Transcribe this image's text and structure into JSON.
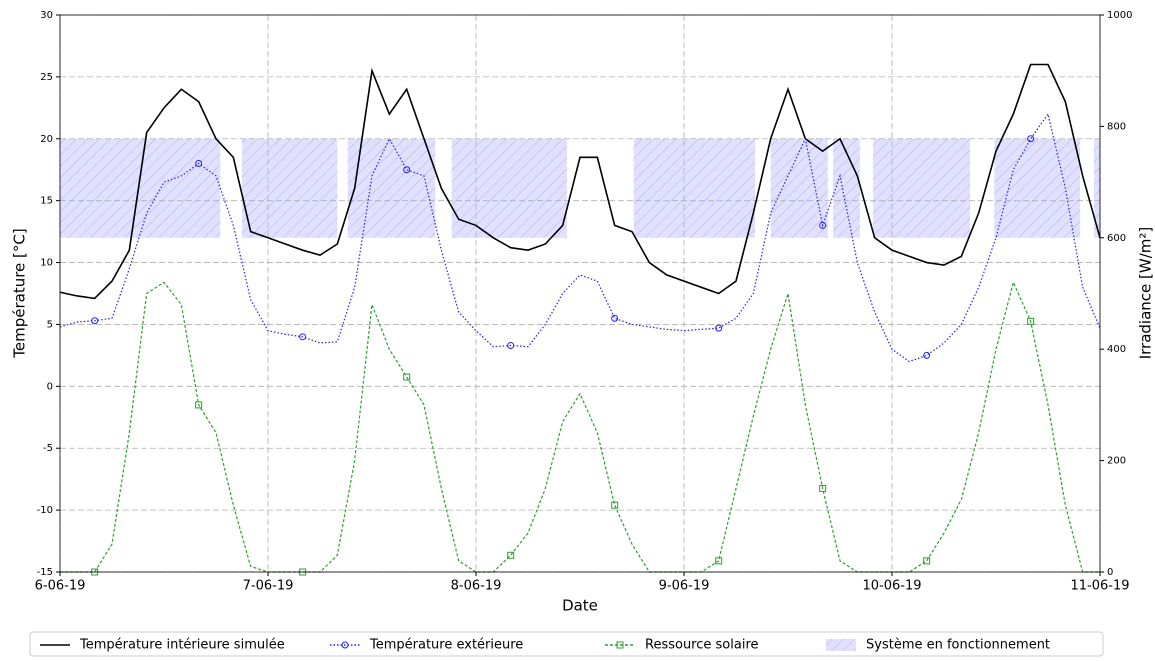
{
  "chart_data": {
    "type": "line",
    "xlabel": "Date",
    "ylabel": "Température [°C]",
    "y2label": "Irradiance [W/m²]",
    "x": [
      0,
      2,
      4,
      6,
      8,
      10,
      12,
      14,
      16,
      18,
      20,
      22,
      24,
      26,
      28,
      30,
      32,
      34,
      36,
      38,
      40,
      42,
      44,
      46,
      48,
      50,
      52,
      54,
      56,
      58,
      60,
      62,
      64,
      66,
      68,
      70,
      72,
      74,
      76,
      78,
      80,
      82,
      84,
      86,
      88,
      90,
      92,
      94,
      96,
      98,
      100,
      102,
      104,
      106,
      108,
      110,
      112,
      114,
      116,
      118,
      120
    ],
    "xlim": [
      0,
      120
    ],
    "xticks": [
      {
        "value": 0,
        "label": "6-06-19"
      },
      {
        "value": 24,
        "label": "7-06-19"
      },
      {
        "value": 48,
        "label": "8-06-19"
      },
      {
        "value": 72,
        "label": "9-06-19"
      },
      {
        "value": 96,
        "label": "10-06-19"
      },
      {
        "value": 120,
        "label": "11-06-19"
      }
    ],
    "ylim": [
      -15,
      30
    ],
    "yticks": [
      -15,
      -10,
      -5,
      0,
      5,
      10,
      15,
      20,
      25,
      30
    ],
    "y2lim": [
      0,
      1000
    ],
    "y2ticks": [
      0,
      200,
      400,
      600,
      800,
      1000
    ],
    "grid": true,
    "legend": "bottom",
    "series": [
      {
        "name": "Température intérieure simulée",
        "color": "#000000",
        "dash": "solid",
        "marker": "none",
        "values": [
          7.6,
          7.3,
          7.1,
          8.5,
          11,
          20.5,
          22.5,
          24,
          23,
          20,
          18.5,
          12.5,
          12,
          11.5,
          11,
          10.6,
          11.5,
          16,
          25.5,
          22,
          24,
          20,
          16,
          13.5,
          13,
          12,
          11.2,
          11,
          11.5,
          13,
          18.5,
          18.5,
          13,
          12.5,
          10,
          9,
          8.5,
          8,
          7.5,
          8.5,
          14,
          20,
          24,
          20,
          19,
          20,
          17,
          12,
          11,
          10.5,
          10,
          9.8,
          10.5,
          14,
          19,
          22,
          26,
          26,
          23,
          17,
          12
        ]
      },
      {
        "name": "Température extérieure",
        "color": "#1f1fff",
        "dash": "dotted",
        "marker": "circle",
        "values": [
          4.8,
          5.2,
          5.3,
          5.5,
          9.5,
          14,
          16.5,
          17,
          18,
          17,
          13,
          7,
          4.5,
          4.2,
          4,
          3.5,
          3.6,
          8,
          17,
          20,
          17.5,
          17,
          11,
          6,
          4.5,
          3.2,
          3.3,
          3.2,
          5,
          7.5,
          9,
          8.5,
          5.5,
          5,
          4.8,
          4.6,
          4.5,
          4.6,
          4.7,
          5.5,
          7.5,
          14,
          17,
          20,
          13,
          17,
          10,
          6,
          3,
          2,
          2.5,
          3.5,
          5,
          8,
          12,
          17.5,
          20,
          22,
          16,
          8,
          4.7
        ]
      },
      {
        "name": "Ressource solaire",
        "color": "#2ca02c",
        "dash": "dashed",
        "marker": "square",
        "axis": "y2",
        "values": [
          0,
          0,
          0,
          50,
          250,
          500,
          520,
          480,
          300,
          250,
          120,
          10,
          0,
          0,
          0,
          0,
          30,
          200,
          480,
          400,
          350,
          300,
          150,
          20,
          0,
          0,
          30,
          70,
          150,
          270,
          320,
          250,
          120,
          50,
          0,
          0,
          0,
          0,
          20,
          150,
          280,
          400,
          500,
          300,
          150,
          20,
          0,
          0,
          0,
          0,
          20,
          70,
          130,
          250,
          400,
          520,
          450,
          300,
          120,
          0,
          0
        ]
      }
    ],
    "operating": {
      "name": "Système en fonctionnement",
      "color": "#6a6aff",
      "band": [
        12,
        20
      ],
      "spans": [
        [
          0,
          18.5
        ],
        [
          21,
          32
        ],
        [
          33.2,
          43.3
        ],
        [
          45.2,
          58.5
        ],
        [
          66.2,
          80.2
        ],
        [
          82,
          88.6
        ],
        [
          89.2,
          92.3
        ],
        [
          93.8,
          105
        ],
        [
          107.8,
          117.7
        ],
        [
          119.3,
          120
        ]
      ]
    }
  }
}
